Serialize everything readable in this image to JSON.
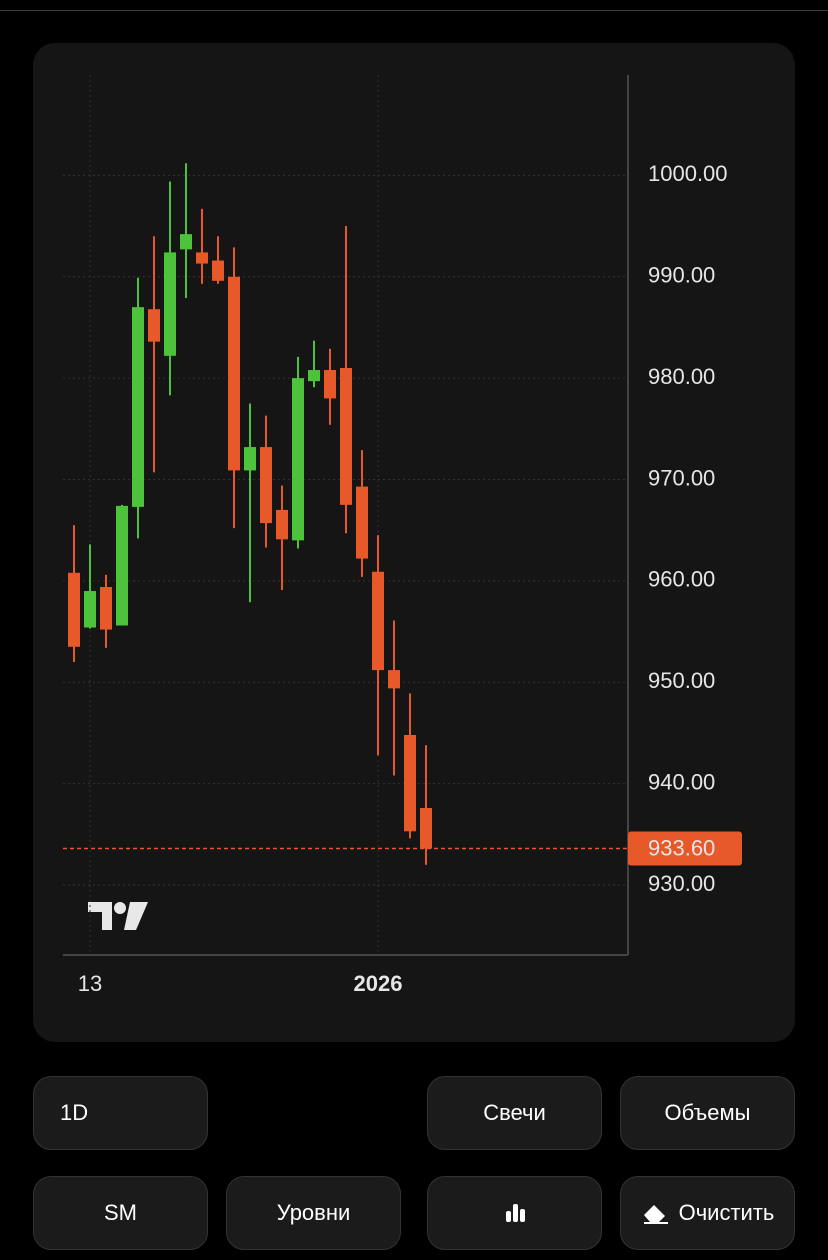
{
  "chart_data": {
    "type": "candlestick",
    "categories": [
      null,
      "13",
      null,
      null,
      null,
      null,
      null,
      null,
      null,
      null,
      null,
      null,
      null,
      null,
      null,
      null,
      null,
      null,
      null,
      "2026",
      null,
      null,
      null
    ],
    "open": [
      960.8,
      955.4,
      959.4,
      955.6,
      967.3,
      986.8,
      982.2,
      992.7,
      992.4,
      991.6,
      990.0,
      970.9,
      973.2,
      967.0,
      964.0,
      979.7,
      980.8,
      981.0,
      969.3,
      960.9,
      951.2,
      944.8,
      937.6
    ],
    "high": [
      965.5,
      963.6,
      960.6,
      967.5,
      989.9,
      994.0,
      999.4,
      1001.2,
      996.7,
      994.0,
      992.9,
      977.5,
      976.3,
      969.4,
      982.1,
      983.7,
      982.9,
      995.0,
      972.9,
      964.5,
      956.1,
      948.9,
      943.8
    ],
    "low": [
      952.0,
      955.3,
      953.4,
      955.6,
      964.2,
      970.7,
      978.3,
      987.9,
      989.3,
      989.3,
      965.2,
      957.9,
      963.3,
      959.1,
      963.2,
      979.1,
      975.4,
      964.7,
      960.4,
      942.8,
      940.8,
      934.6,
      932.0
    ],
    "close": [
      953.5,
      959.0,
      955.2,
      967.4,
      987.0,
      983.6,
      992.4,
      994.2,
      991.3,
      989.6,
      970.9,
      973.2,
      965.7,
      964.1,
      980.0,
      980.8,
      978.0,
      967.5,
      962.2,
      951.2,
      949.4,
      935.3,
      933.6
    ],
    "up_color": "#4cc33a",
    "down_color": "#e8592a",
    "ylim": [
      923.1,
      1009.9
    ],
    "yticks": [
      {
        "value": 930,
        "label": "930.00"
      },
      {
        "value": 940,
        "label": "940.00"
      },
      {
        "value": 950,
        "label": "950.00"
      },
      {
        "value": 960,
        "label": "960.00"
      },
      {
        "value": 970,
        "label": "970.00"
      },
      {
        "value": 980,
        "label": "980.00"
      },
      {
        "value": 990,
        "label": "990.00"
      },
      {
        "value": 1000,
        "label": "1000.00"
      }
    ],
    "last_price": {
      "value": 933.6,
      "label": "933.60"
    },
    "grid": true
  },
  "buttons": [
    "1D",
    "Свечи",
    "Объемы",
    "SM",
    "Уровни",
    "Очистить"
  ]
}
